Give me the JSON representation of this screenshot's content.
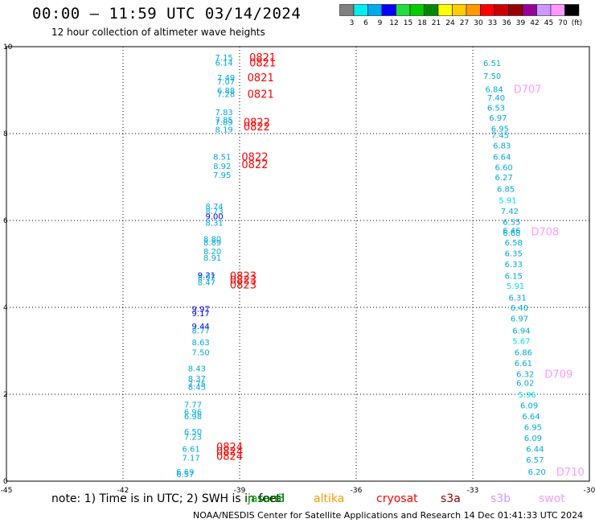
{
  "header": {
    "title": "00:00 – 11:59 UTC 03/14/2024",
    "subtitle": "12 hour collection of altimeter wave heights"
  },
  "colorbar": {
    "labels": [
      "3",
      "6",
      "9",
      "12",
      "15",
      "18",
      "21",
      "24",
      "27",
      "30",
      "33",
      "36",
      "39",
      "42",
      "45",
      "70",
      "(ft)"
    ],
    "colors": [
      "#808080",
      "#00eeee",
      "#00aaee",
      "#0000ff",
      "#20dd40",
      "#00cc00",
      "#008800",
      "#ffff00",
      "#ffcc00",
      "#ff9900",
      "#ff0000",
      "#cc0000",
      "#990000",
      "#990099",
      "#cc99ff",
      "#ff99ff",
      "#000000"
    ]
  },
  "footer": {
    "note": "note: 1) Time is in UTC; 2) SWH is in feet",
    "credit": "NOAA/NESDIS Center for Satellite Applications and Research   14 Dec 01:41:33 UTC 2024",
    "satellites": [
      {
        "name": "jason3",
        "color": "#00aa00"
      },
      {
        "name": "saral",
        "color": "#006600"
      },
      {
        "name": "altika",
        "color": "#ff9900"
      },
      {
        "name": "cryosat",
        "color": "#ff0000"
      },
      {
        "name": "s3a",
        "color": "#990000"
      },
      {
        "name": "s3b",
        "color": "#cc99ff"
      },
      {
        "name": "swot",
        "color": "#ff99ff"
      }
    ]
  },
  "chart_data": {
    "type": "scatter",
    "title": "",
    "xlim": [
      -45,
      -30
    ],
    "ylim": [
      0,
      10
    ],
    "xticks": [
      "-45",
      "-42",
      "-39",
      "-36",
      "-33",
      "-30"
    ],
    "yticks": [
      "0",
      "2",
      "4",
      "6",
      "8",
      "10"
    ],
    "grid": true,
    "series": [
      {
        "name": "cryosat",
        "color": "#ff0000",
        "points": [
          {
            "x": -39.4,
            "y": 9.76,
            "label": "7.15"
          },
          {
            "x": -39.4,
            "y": 9.64,
            "label": "6.14"
          },
          {
            "x": -39.35,
            "y": 9.3,
            "label": "7.49"
          },
          {
            "x": -39.35,
            "y": 9.2,
            "label": "7.07"
          },
          {
            "x": -39.35,
            "y": 9.0,
            "label": "6.88"
          },
          {
            "x": -39.35,
            "y": 8.92,
            "label": "7.28"
          },
          {
            "x": -39.4,
            "y": 8.5,
            "label": "7.83"
          },
          {
            "x": -39.4,
            "y": 8.32,
            "label": "7.85"
          },
          {
            "x": -39.4,
            "y": 8.27,
            "label": "7.89"
          },
          {
            "x": -39.4,
            "y": 8.1,
            "label": "8.19"
          },
          {
            "x": -39.45,
            "y": 7.47,
            "label": "8.51"
          },
          {
            "x": -39.45,
            "y": 7.26,
            "label": "8.92"
          },
          {
            "x": -39.45,
            "y": 7.06,
            "label": "7.95"
          },
          {
            "x": -39.65,
            "y": 6.33,
            "label": "8.74"
          },
          {
            "x": -39.65,
            "y": 6.22,
            "label": "8.73"
          },
          {
            "x": -39.65,
            "y": 6.1,
            "label": "9.00"
          },
          {
            "x": -39.65,
            "y": 5.95,
            "label": "8.31"
          },
          {
            "x": -39.7,
            "y": 5.58,
            "label": "8.80"
          },
          {
            "x": -39.7,
            "y": 5.5,
            "label": "8.89"
          },
          {
            "x": -39.7,
            "y": 5.3,
            "label": "8.20"
          },
          {
            "x": -39.7,
            "y": 5.15,
            "label": "8.91"
          },
          {
            "x": -39.85,
            "y": 4.75,
            "label": "9.21"
          },
          {
            "x": -39.85,
            "y": 4.7,
            "label": "8.97"
          },
          {
            "x": -39.85,
            "y": 4.58,
            "label": "8.47"
          },
          {
            "x": -40.0,
            "y": 3.97,
            "label": "9.97"
          },
          {
            "x": -40.0,
            "y": 3.87,
            "label": "9.17"
          },
          {
            "x": -40.0,
            "y": 3.57,
            "label": "9.44"
          },
          {
            "x": -40.0,
            "y": 3.47,
            "label": "8.77"
          },
          {
            "x": -40.0,
            "y": 3.2,
            "label": "8.63"
          },
          {
            "x": -40.0,
            "y": 2.97,
            "label": "7.50"
          },
          {
            "x": -40.1,
            "y": 2.6,
            "label": "8.43"
          },
          {
            "x": -40.1,
            "y": 2.37,
            "label": "8.37"
          },
          {
            "x": -40.1,
            "y": 2.25,
            "label": "7.75"
          },
          {
            "x": -40.1,
            "y": 2.18,
            "label": "8.45"
          },
          {
            "x": -40.2,
            "y": 1.77,
            "label": "7.77"
          },
          {
            "x": -40.2,
            "y": 1.6,
            "label": "6.96"
          },
          {
            "x": -40.2,
            "y": 1.5,
            "label": "6.98"
          },
          {
            "x": -40.2,
            "y": 1.15,
            "label": "6.50"
          },
          {
            "x": -40.2,
            "y": 1.03,
            "label": "7.23"
          },
          {
            "x": -40.25,
            "y": 0.75,
            "label": "6.61"
          },
          {
            "x": -40.25,
            "y": 0.55,
            "label": "7.17"
          },
          {
            "x": -40.4,
            "y": 0.22,
            "label": "6.69"
          },
          {
            "x": -40.4,
            "y": 0.17,
            "label": "6.57"
          }
        ],
        "labels": [
          {
            "text": "0821",
            "x": -38.75,
            "y": 9.76
          },
          {
            "text": "0821",
            "x": -38.75,
            "y": 9.64
          },
          {
            "text": "0821",
            "x": -38.8,
            "y": 9.3
          },
          {
            "text": "0821",
            "x": -38.8,
            "y": 8.92
          },
          {
            "text": "0822",
            "x": -38.9,
            "y": 8.27
          },
          {
            "text": "0822",
            "x": -38.9,
            "y": 8.17
          },
          {
            "text": "0822",
            "x": -38.95,
            "y": 7.47
          },
          {
            "text": "0822",
            "x": -38.95,
            "y": 7.3
          },
          {
            "text": "0823",
            "x": -39.25,
            "y": 4.73
          },
          {
            "text": "0823",
            "x": -39.25,
            "y": 4.64
          },
          {
            "text": "0823",
            "x": -39.25,
            "y": 4.53
          },
          {
            "text": "0824",
            "x": -39.6,
            "y": 0.8
          },
          {
            "text": "0824",
            "x": -39.6,
            "y": 0.69
          },
          {
            "text": "0824",
            "x": -39.6,
            "y": 0.58
          }
        ]
      },
      {
        "name": "swot",
        "color": "#ff99ff",
        "points": [
          {
            "x": -32.5,
            "y": 9.63,
            "label": "6.51"
          },
          {
            "x": -32.5,
            "y": 9.33,
            "label": "7.50"
          },
          {
            "x": -32.45,
            "y": 9.03,
            "label": "6.84"
          },
          {
            "x": -32.4,
            "y": 8.83,
            "label": "7.40"
          },
          {
            "x": -32.4,
            "y": 8.6,
            "label": "6.53"
          },
          {
            "x": -32.35,
            "y": 8.37,
            "label": "6.97"
          },
          {
            "x": -32.3,
            "y": 8.12,
            "label": "6.95"
          },
          {
            "x": -32.3,
            "y": 7.97,
            "label": "7.45"
          },
          {
            "x": -32.25,
            "y": 7.73,
            "label": "6.83"
          },
          {
            "x": -32.25,
            "y": 7.47,
            "label": "6.64"
          },
          {
            "x": -32.2,
            "y": 7.23,
            "label": "6.60"
          },
          {
            "x": -32.2,
            "y": 7.0,
            "label": "6.27"
          },
          {
            "x": -32.15,
            "y": 6.73,
            "label": "6.85"
          },
          {
            "x": -32.1,
            "y": 6.47,
            "label": "5.91"
          },
          {
            "x": -32.05,
            "y": 6.22,
            "label": "7.42"
          },
          {
            "x": -32.0,
            "y": 5.97,
            "label": "6.55"
          },
          {
            "x": -32.0,
            "y": 5.78,
            "label": "6.46"
          },
          {
            "x": -32.0,
            "y": 5.72,
            "label": "6.68"
          },
          {
            "x": -31.95,
            "y": 5.5,
            "label": "6.58"
          },
          {
            "x": -31.95,
            "y": 5.25,
            "label": "6.35"
          },
          {
            "x": -31.95,
            "y": 5.0,
            "label": "6.33"
          },
          {
            "x": -31.95,
            "y": 4.73,
            "label": "6.15"
          },
          {
            "x": -31.9,
            "y": 4.5,
            "label": "5.91"
          },
          {
            "x": -31.85,
            "y": 4.23,
            "label": "6.31"
          },
          {
            "x": -31.8,
            "y": 4.0,
            "label": "6.40"
          },
          {
            "x": -31.8,
            "y": 3.75,
            "label": "6.97"
          },
          {
            "x": -31.75,
            "y": 3.47,
            "label": "6.94"
          },
          {
            "x": -31.75,
            "y": 3.23,
            "label": "5.67"
          },
          {
            "x": -31.7,
            "y": 2.97,
            "label": "6.86"
          },
          {
            "x": -31.7,
            "y": 2.72,
            "label": "6.61"
          },
          {
            "x": -31.65,
            "y": 2.47,
            "label": "6.32"
          },
          {
            "x": -31.65,
            "y": 2.27,
            "label": "6.02"
          },
          {
            "x": -31.6,
            "y": 2.0,
            "label": "5.96"
          },
          {
            "x": -31.55,
            "y": 1.75,
            "label": "6.09"
          },
          {
            "x": -31.5,
            "y": 1.5,
            "label": "6.64"
          },
          {
            "x": -31.45,
            "y": 1.25,
            "label": "6.95"
          },
          {
            "x": -31.45,
            "y": 1.0,
            "label": "6.09"
          },
          {
            "x": -31.4,
            "y": 0.75,
            "label": "6.44"
          },
          {
            "x": -31.4,
            "y": 0.5,
            "label": "6.57"
          },
          {
            "x": -31.35,
            "y": 0.22,
            "label": "6.20"
          }
        ],
        "labels": [
          {
            "text": "D707",
            "x": -31.95,
            "y": 9.03
          },
          {
            "text": "D708",
            "x": -31.5,
            "y": 5.75
          },
          {
            "text": "D709",
            "x": -31.15,
            "y": 2.47
          },
          {
            "text": "D710",
            "x": -30.85,
            "y": 0.22
          }
        ]
      }
    ]
  }
}
